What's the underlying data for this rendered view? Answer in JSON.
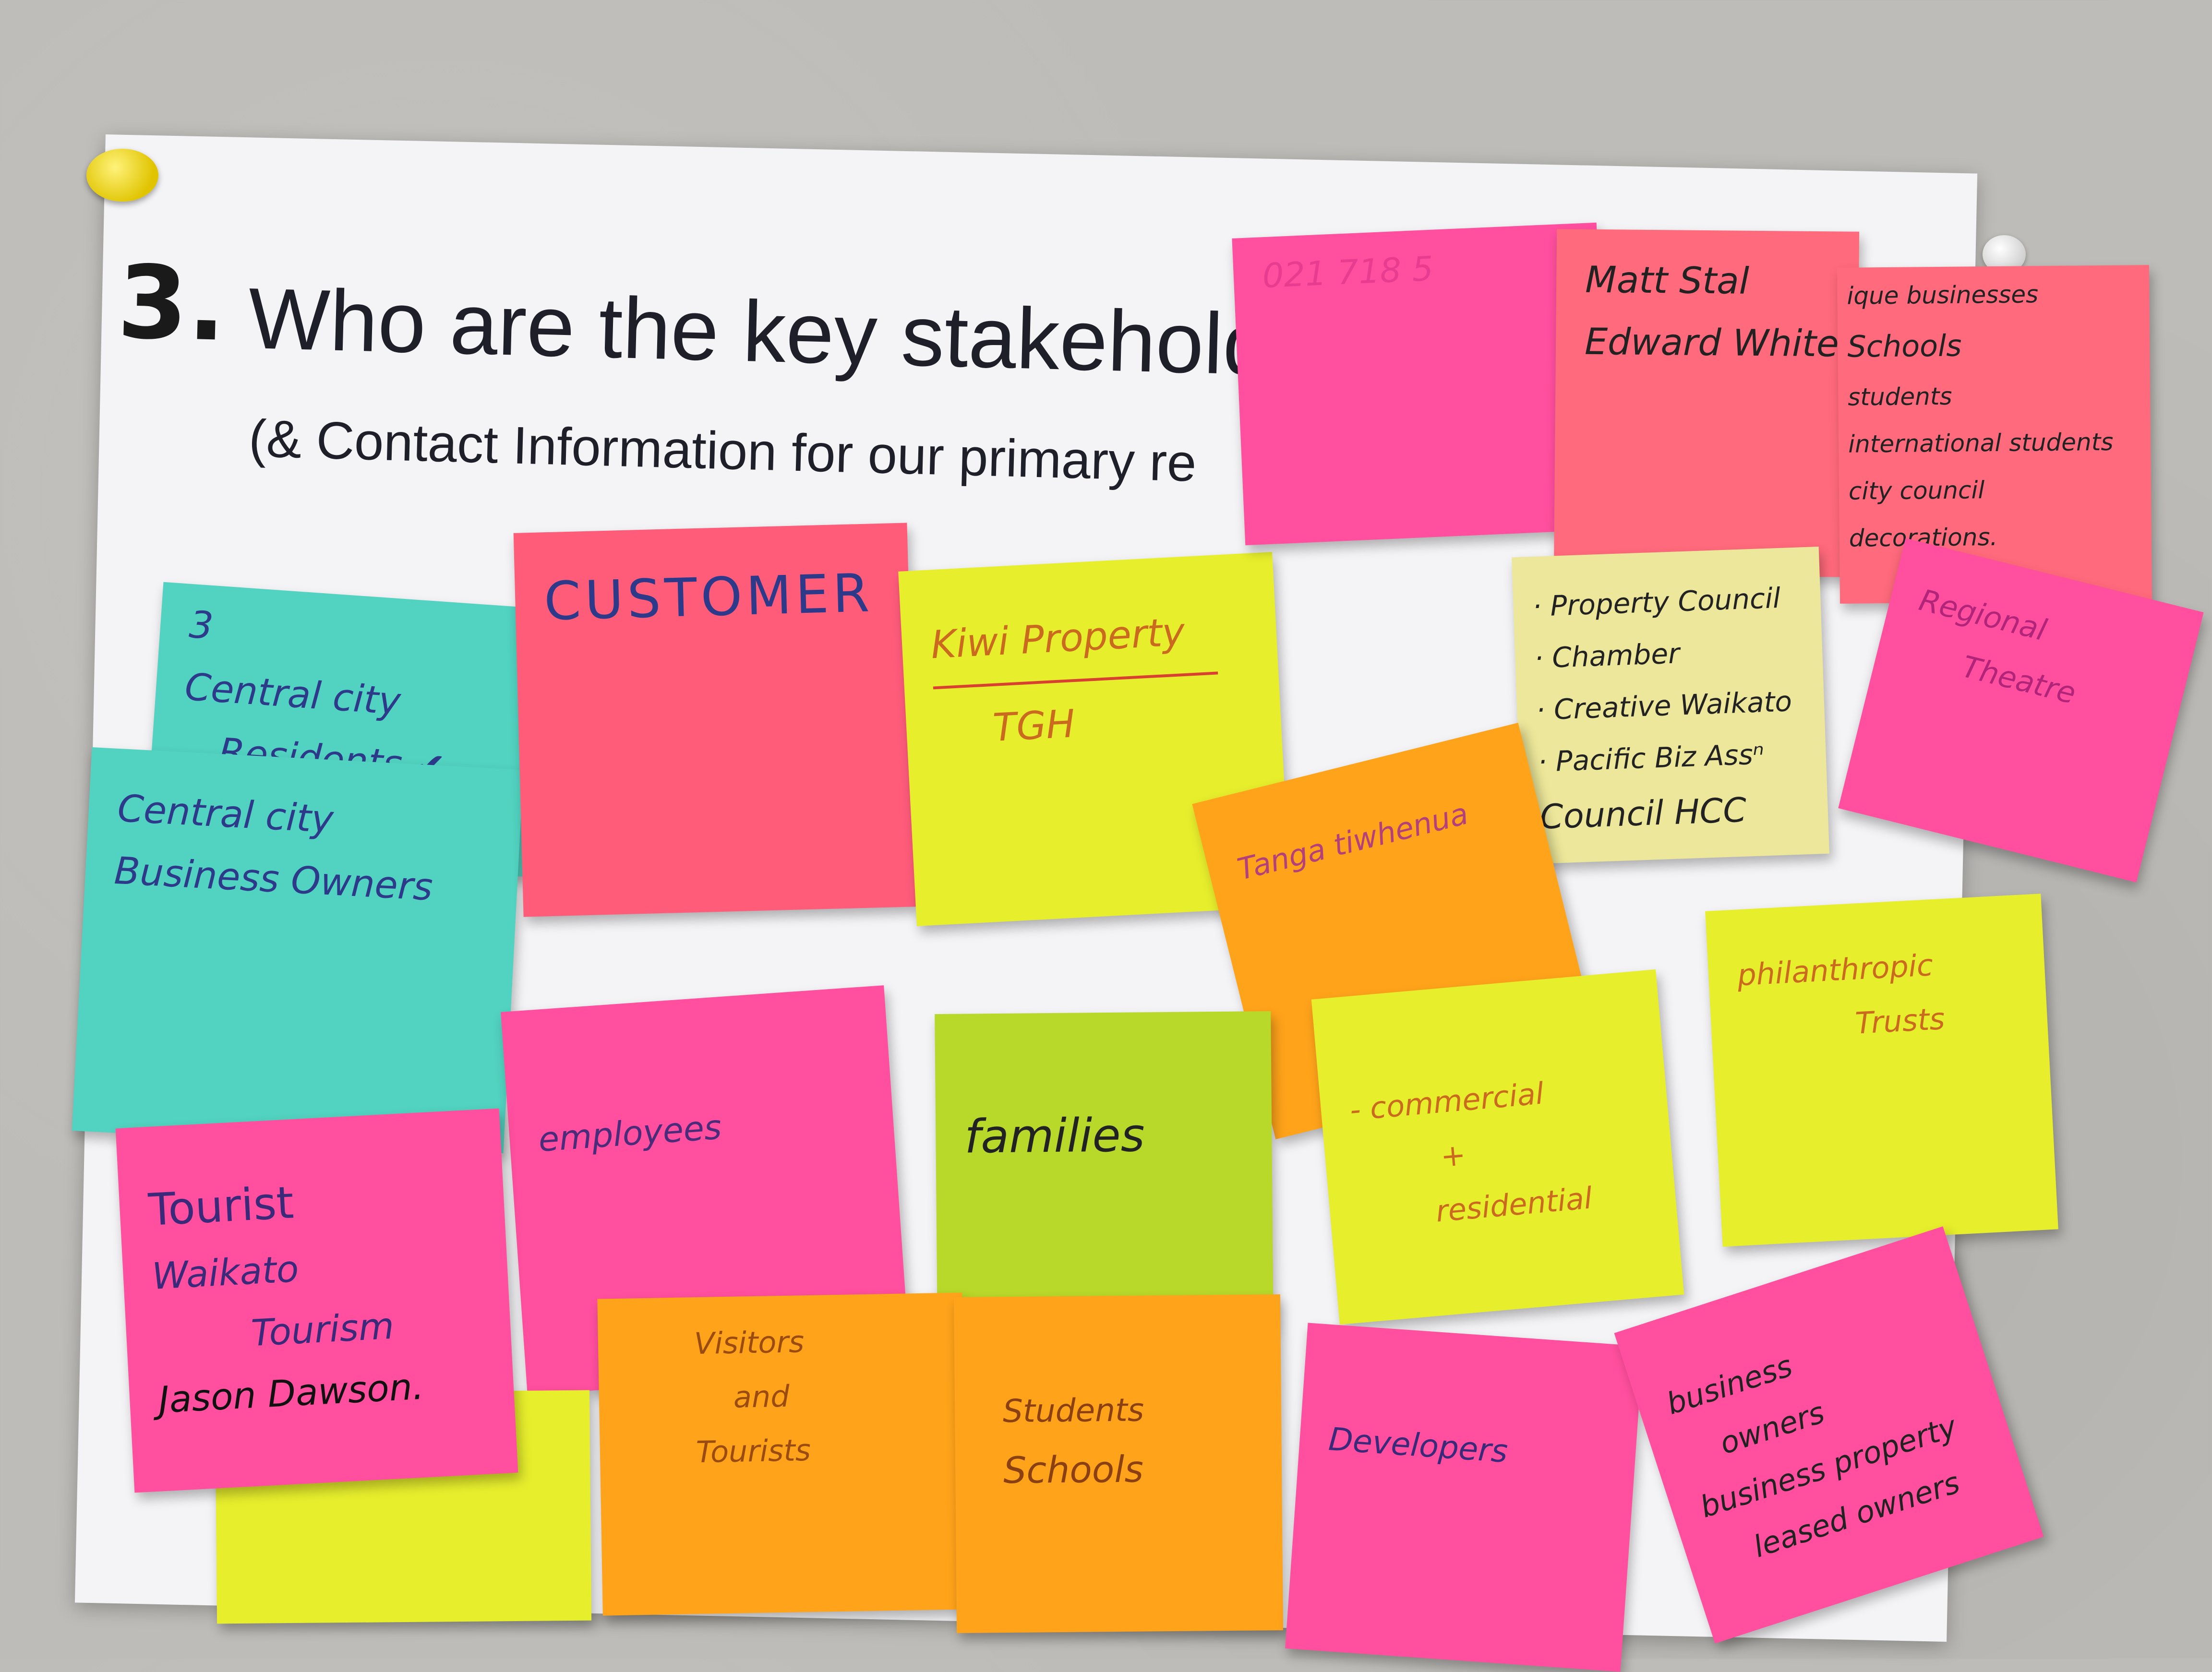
{
  "heading": {
    "number": "3.",
    "title": "Who are the key stakeholders",
    "subtitle": "(& Contact Information for our primary re"
  },
  "notes": {
    "residents": {
      "lines": [
        "3",
        "Central city",
        "Residents ✔"
      ]
    },
    "business_owners": {
      "lines": [
        "Central city",
        "Business Owners"
      ]
    },
    "customer": {
      "lines": [
        "CUSTOMER"
      ]
    },
    "kiwi": {
      "lines": [
        "Kiwi Property",
        "TGH"
      ]
    },
    "phone": {
      "lines": [
        "021 718 5"
      ]
    },
    "matt": {
      "lines": [
        "Matt Stal",
        "Edward White"
      ]
    },
    "schools_list": {
      "lines": [
        "ique businesses",
        "Schools",
        "students",
        "international students",
        "city council",
        "decorations."
      ]
    },
    "property_council": {
      "lines": [
        "· Property Council",
        "· Chamber",
        "· Creative Waikato",
        "· Pacific Biz Assⁿ",
        "Council HCC"
      ]
    },
    "regional_theatre": {
      "lines": [
        "Regional",
        "Theatre"
      ]
    },
    "tanga": {
      "lines": [
        "Tanga tiwhenua"
      ]
    },
    "employees": {
      "lines": [
        "employees"
      ]
    },
    "families": {
      "lines": [
        "families"
      ]
    },
    "commercial": {
      "lines": [
        "- commercial",
        "+",
        "residential"
      ]
    },
    "philanthropic": {
      "lines": [
        "philanthropic",
        "Trusts"
      ]
    },
    "tourist": {
      "lines": [
        "Tourist",
        "Waikato",
        "Tourism",
        "Jason Dawson."
      ]
    },
    "visitors": {
      "lines": [
        "Visitors",
        "and",
        "Tourists"
      ]
    },
    "students": {
      "lines": [
        "Students",
        "Schools"
      ]
    },
    "developers": {
      "lines": [
        "Developers"
      ]
    },
    "bizowners": {
      "lines": [
        "business",
        "owners",
        "business property",
        "leased owners"
      ]
    }
  }
}
